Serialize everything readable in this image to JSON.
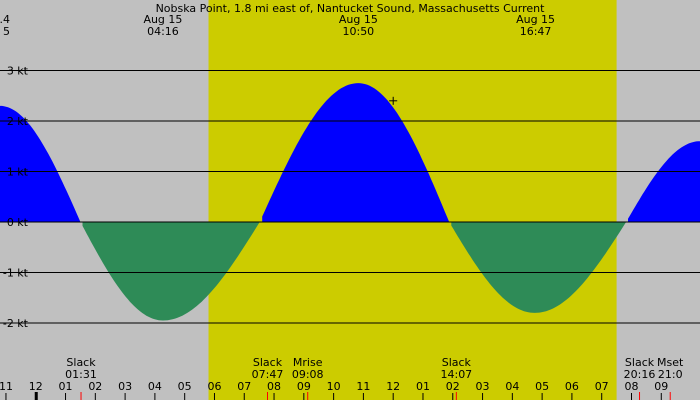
{
  "chart_data": {
    "type": "area",
    "title": "Nobska Point, 1.8 mi east of, Nantucket Sound, Massachusetts Current",
    "xlabel": "",
    "ylabel": "",
    "x_unit": "hours (local time)",
    "x_range": [
      22.8,
      46.3
    ],
    "ylim": [
      -2.8,
      3.4
    ],
    "y_ticks": [
      {
        "value": 3,
        "label": "3 kt"
      },
      {
        "value": 2,
        "label": "2 kt"
      },
      {
        "value": 1,
        "label": "1 kt"
      },
      {
        "value": 0,
        "label": "0 kt"
      },
      {
        "value": -1,
        "label": "-1 kt"
      },
      {
        "value": -2,
        "label": "-2 kt"
      }
    ],
    "grid": true,
    "colors": {
      "night": "#c0c0c0",
      "day": "#cccc00",
      "flood": "#0000ff",
      "ebb": "#2e8b57",
      "grid": "#000000",
      "marker": "#ff0000"
    },
    "daylight": {
      "start": 29.8,
      "end": 43.5
    },
    "series": [
      {
        "x": [
          22.8,
          25.5,
          28.27,
          31.52,
          34.83,
          37.88,
          40.75,
          43.82,
          46.3
        ],
        "values": [
          2.3,
          0,
          -1.95,
          0,
          2.75,
          0,
          -1.8,
          0,
          1.6
        ]
      }
    ],
    "top_labels": [
      {
        "x": 22.8,
        "date": ".4",
        "time": "5"
      },
      {
        "x": 28.27,
        "date": "Aug 15",
        "time": "04:16"
      },
      {
        "x": 34.83,
        "date": "Aug 15",
        "time": "10:50"
      },
      {
        "x": 40.78,
        "date": "Aug 15",
        "time": "16:47"
      }
    ],
    "events": [
      {
        "x": 25.52,
        "name": "Slack",
        "time": "01:31"
      },
      {
        "x": 31.78,
        "name": "Slack",
        "time": "07:47"
      },
      {
        "x": 33.13,
        "name": "Mrise",
        "time": "09:08"
      },
      {
        "x": 38.12,
        "name": "Slack",
        "time": "14:07"
      },
      {
        "x": 44.27,
        "name": "Slack",
        "time": "20:16"
      },
      {
        "x": 45.3,
        "name": "Mset",
        "time": "21:0"
      }
    ],
    "x_ticks": [
      {
        "x": 23,
        "label": "11"
      },
      {
        "x": 24,
        "label": "12"
      },
      {
        "x": 25,
        "label": "01"
      },
      {
        "x": 26,
        "label": "02"
      },
      {
        "x": 27,
        "label": "03"
      },
      {
        "x": 28,
        "label": "04"
      },
      {
        "x": 29,
        "label": "05"
      },
      {
        "x": 30,
        "label": "06"
      },
      {
        "x": 31,
        "label": "07"
      },
      {
        "x": 32,
        "label": "08"
      },
      {
        "x": 33,
        "label": "09"
      },
      {
        "x": 34,
        "label": "10"
      },
      {
        "x": 35,
        "label": "11"
      },
      {
        "x": 36,
        "label": "12"
      },
      {
        "x": 37,
        "label": "01"
      },
      {
        "x": 38,
        "label": "02"
      },
      {
        "x": 39,
        "label": "03"
      },
      {
        "x": 40,
        "label": "04"
      },
      {
        "x": 41,
        "label": "05"
      },
      {
        "x": 42,
        "label": "06"
      },
      {
        "x": 43,
        "label": "07"
      },
      {
        "x": 44,
        "label": "08"
      },
      {
        "x": 45,
        "label": "09"
      }
    ],
    "midnight_x": 24,
    "cursor": {
      "x": 36.0,
      "y": 2.4
    }
  }
}
